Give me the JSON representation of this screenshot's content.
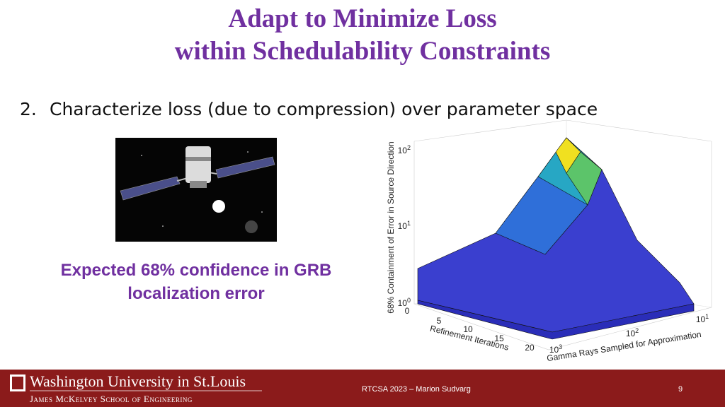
{
  "header": {
    "title_lines": [
      "Adapt to Minimize Loss",
      "within Schedulability Constraints"
    ]
  },
  "bullet": {
    "number": "2.",
    "text": "Characterize loss (due to compression) over parameter space"
  },
  "caption": {
    "lines": [
      "Expected 68% confidence in GRB",
      "localization error"
    ]
  },
  "figure": {
    "z_label": "68% Containment of Error in Source Direction",
    "x_label": "Refinement Iterations",
    "y_label": "Gamma Rays Sampled for Approximation",
    "z_ticks": [
      {
        "base": "10",
        "exp": "2"
      },
      {
        "base": "10",
        "exp": "1"
      },
      {
        "base": "10",
        "exp": "0"
      }
    ],
    "x_ticks": [
      "0",
      "5",
      "10",
      "15",
      "20"
    ],
    "y_ticks": [
      {
        "base": "10",
        "exp": "3"
      },
      {
        "base": "10",
        "exp": "2"
      },
      {
        "base": "10",
        "exp": "1"
      }
    ]
  },
  "footer": {
    "university": "Washington University in St.Louis",
    "school": "James McKelvey School of Engineering",
    "center": "RTCSA 2023 – Marion Sudvarg",
    "page": 9
  }
}
